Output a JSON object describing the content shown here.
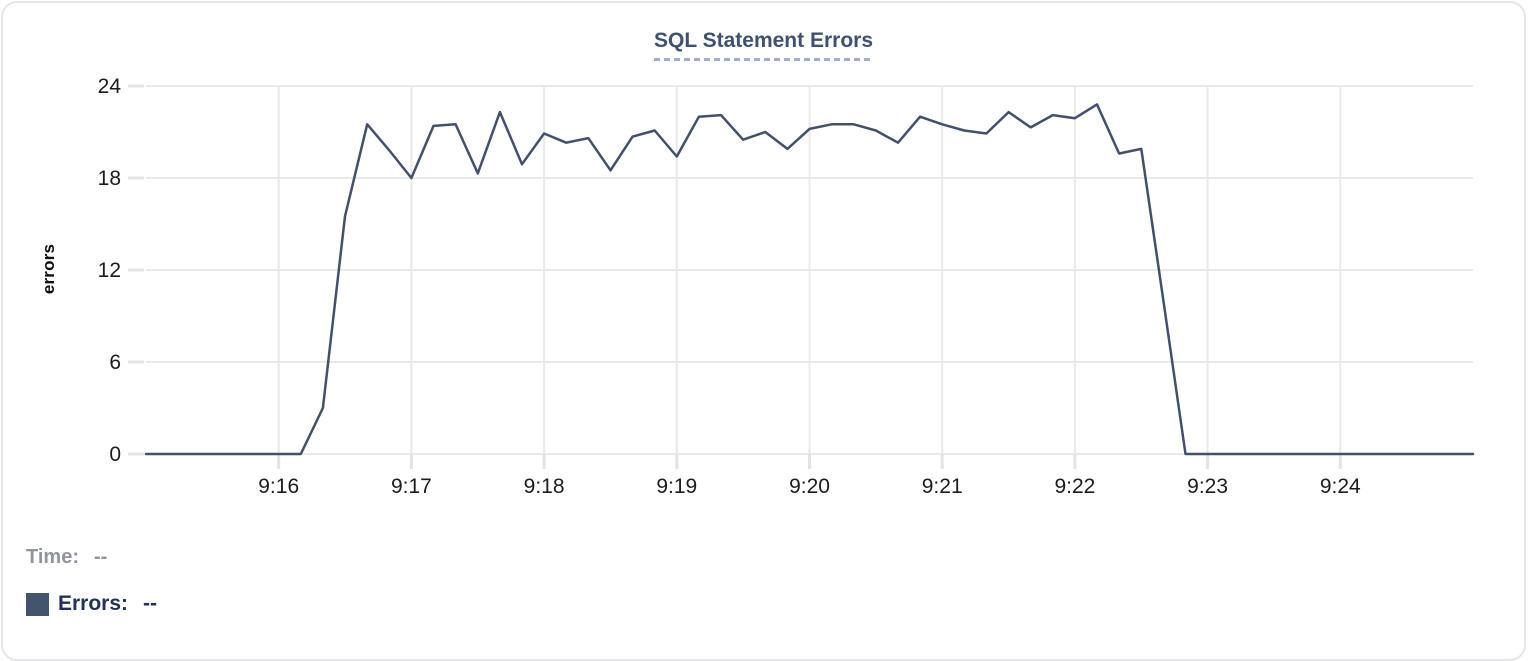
{
  "header": {
    "title": "SQL Statement Errors"
  },
  "y_axis": {
    "label": "errors"
  },
  "legend": {
    "time_label": "Time:",
    "time_value": "--",
    "errors_label": "Errors:",
    "errors_value": "--",
    "swatch_color": "#44536e"
  },
  "colors": {
    "line": "#42506c",
    "grid": "#e9e9e9",
    "tick_stub": "#e3e3e3",
    "axis_text": "#1c1c1c",
    "title": "#3d5271",
    "title_underline": "#a2aec7",
    "legend_time_text": "#8f949e",
    "legend_errors_text": "#233158",
    "card_border": "#e7e7e9"
  },
  "chart_data": {
    "type": "line",
    "title": "SQL Statement Errors",
    "xlabel": "",
    "ylabel": "errors",
    "ylim": [
      0,
      24
    ],
    "y_ticks": [
      0,
      6,
      12,
      18,
      24
    ],
    "x_ticks": [
      "9:16",
      "9:17",
      "9:18",
      "9:19",
      "9:20",
      "9:21",
      "9:22",
      "9:23",
      "9:24"
    ],
    "x_start": "9:15:00",
    "x_end": "9:25:00",
    "interval_seconds": 10,
    "grid": true,
    "legend_position": "bottom-left",
    "series": [
      {
        "name": "Errors",
        "color": "#42506c",
        "points": [
          [
            "9:15:00",
            0
          ],
          [
            "9:15:10",
            0
          ],
          [
            "9:15:20",
            0
          ],
          [
            "9:15:30",
            0
          ],
          [
            "9:15:40",
            0
          ],
          [
            "9:15:50",
            0
          ],
          [
            "9:16:00",
            0
          ],
          [
            "9:16:10",
            0
          ],
          [
            "9:16:20",
            3
          ],
          [
            "9:16:30",
            15.5
          ],
          [
            "9:16:40",
            21.5
          ],
          [
            "9:16:50",
            19.8
          ],
          [
            "9:17:00",
            18
          ],
          [
            "9:17:10",
            21.4
          ],
          [
            "9:17:20",
            21.5
          ],
          [
            "9:17:30",
            18.3
          ],
          [
            "9:17:40",
            22.3
          ],
          [
            "9:17:50",
            18.9
          ],
          [
            "9:18:00",
            20.9
          ],
          [
            "9:18:10",
            20.3
          ],
          [
            "9:18:20",
            20.6
          ],
          [
            "9:18:30",
            18.5
          ],
          [
            "9:18:40",
            20.7
          ],
          [
            "9:18:50",
            21.1
          ],
          [
            "9:19:00",
            19.4
          ],
          [
            "9:19:10",
            22
          ],
          [
            "9:19:20",
            22.1
          ],
          [
            "9:19:30",
            20.5
          ],
          [
            "9:19:40",
            21
          ],
          [
            "9:19:50",
            19.9
          ],
          [
            "9:20:00",
            21.2
          ],
          [
            "9:20:10",
            21.5
          ],
          [
            "9:20:20",
            21.5
          ],
          [
            "9:20:30",
            21.1
          ],
          [
            "9:20:40",
            20.3
          ],
          [
            "9:20:50",
            22
          ],
          [
            "9:21:00",
            21.5
          ],
          [
            "9:21:10",
            21.1
          ],
          [
            "9:21:20",
            20.9
          ],
          [
            "9:21:30",
            22.3
          ],
          [
            "9:21:40",
            21.3
          ],
          [
            "9:21:50",
            22.1
          ],
          [
            "9:22:00",
            21.9
          ],
          [
            "9:22:10",
            22.8
          ],
          [
            "9:22:20",
            19.6
          ],
          [
            "9:22:30",
            19.9
          ],
          [
            "9:22:40",
            10
          ],
          [
            "9:22:50",
            0
          ],
          [
            "9:23:00",
            0
          ],
          [
            "9:23:10",
            0
          ],
          [
            "9:23:20",
            0
          ],
          [
            "9:23:30",
            0
          ],
          [
            "9:23:40",
            0
          ],
          [
            "9:23:50",
            0
          ],
          [
            "9:24:00",
            0
          ],
          [
            "9:24:10",
            0
          ],
          [
            "9:24:20",
            0
          ],
          [
            "9:24:30",
            0
          ],
          [
            "9:24:40",
            0
          ],
          [
            "9:24:50",
            0
          ],
          [
            "9:25:00",
            0
          ]
        ]
      }
    ]
  }
}
